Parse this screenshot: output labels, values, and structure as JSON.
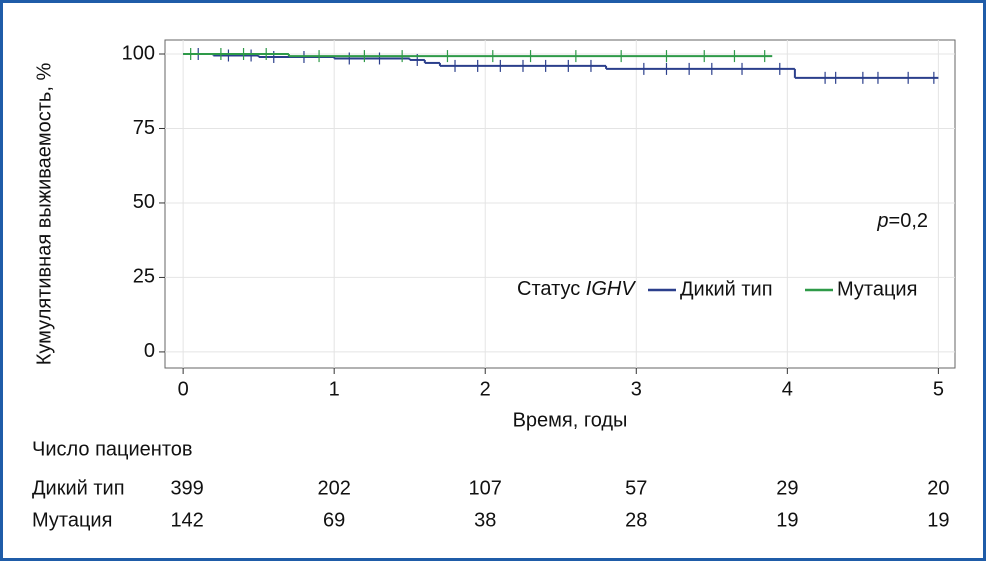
{
  "chart_data": {
    "type": "step",
    "xlabel": "Время, годы",
    "ylabel": "Кумулятивная выживаемость, %",
    "xlim": [
      -0.12,
      5.11
    ],
    "ylim": [
      -5.4,
      104.7
    ],
    "xticks": [
      0,
      1,
      2,
      3,
      4,
      5
    ],
    "yticks": [
      0,
      25,
      50,
      75,
      100
    ],
    "grid": true,
    "legend_title": "Статус",
    "legend_title_gene": "IGHV",
    "annotation_symbol": "p",
    "annotation_text": "=0,2",
    "series": [
      {
        "name": "Дикий тип",
        "color": "#2b3f8c",
        "x": [
          0,
          0.2,
          0.5,
          1.0,
          1.5,
          1.6,
          1.7,
          2.8,
          4.05,
          5.0
        ],
        "values": [
          100,
          99.5,
          99,
          98.5,
          98,
          97,
          96,
          95,
          92,
          92
        ],
        "censor_x": [
          0.1,
          0.3,
          0.45,
          0.6,
          0.8,
          1.1,
          1.3,
          1.55,
          1.8,
          1.95,
          2.1,
          2.25,
          2.4,
          2.55,
          2.7,
          3.05,
          3.2,
          3.35,
          3.5,
          3.7,
          3.95,
          4.25,
          4.32,
          4.5,
          4.6,
          4.8,
          4.97
        ],
        "censor_y": [
          100,
          99.5,
          99.5,
          99,
          99,
          98.5,
          98.5,
          98,
          96,
          96,
          96,
          96,
          96,
          96,
          96,
          95,
          95,
          95,
          95,
          95,
          95,
          92,
          92,
          92,
          92,
          92,
          92
        ]
      },
      {
        "name": "Мутация",
        "color": "#2e9a48",
        "x": [
          0,
          0.7,
          3.9
        ],
        "values": [
          100,
          99.3,
          99.3
        ],
        "censor_x": [
          0.05,
          0.25,
          0.4,
          0.55,
          0.9,
          1.2,
          1.45,
          1.75,
          2.05,
          2.3,
          2.6,
          2.9,
          3.2,
          3.45,
          3.65,
          3.85
        ],
        "censor_y": [
          100,
          100,
          100,
          100,
          99.3,
          99.3,
          99.3,
          99.3,
          99.3,
          99.3,
          99.3,
          99.3,
          99.3,
          99.3,
          99.3,
          99.3
        ]
      }
    ]
  },
  "risk_table": {
    "title": "Число пациентов",
    "rows": [
      {
        "name": "Дикий тип",
        "values": [
          399,
          202,
          107,
          57,
          29,
          20
        ]
      },
      {
        "name": "Мутация",
        "values": [
          142,
          69,
          38,
          28,
          19,
          19
        ]
      }
    ]
  }
}
